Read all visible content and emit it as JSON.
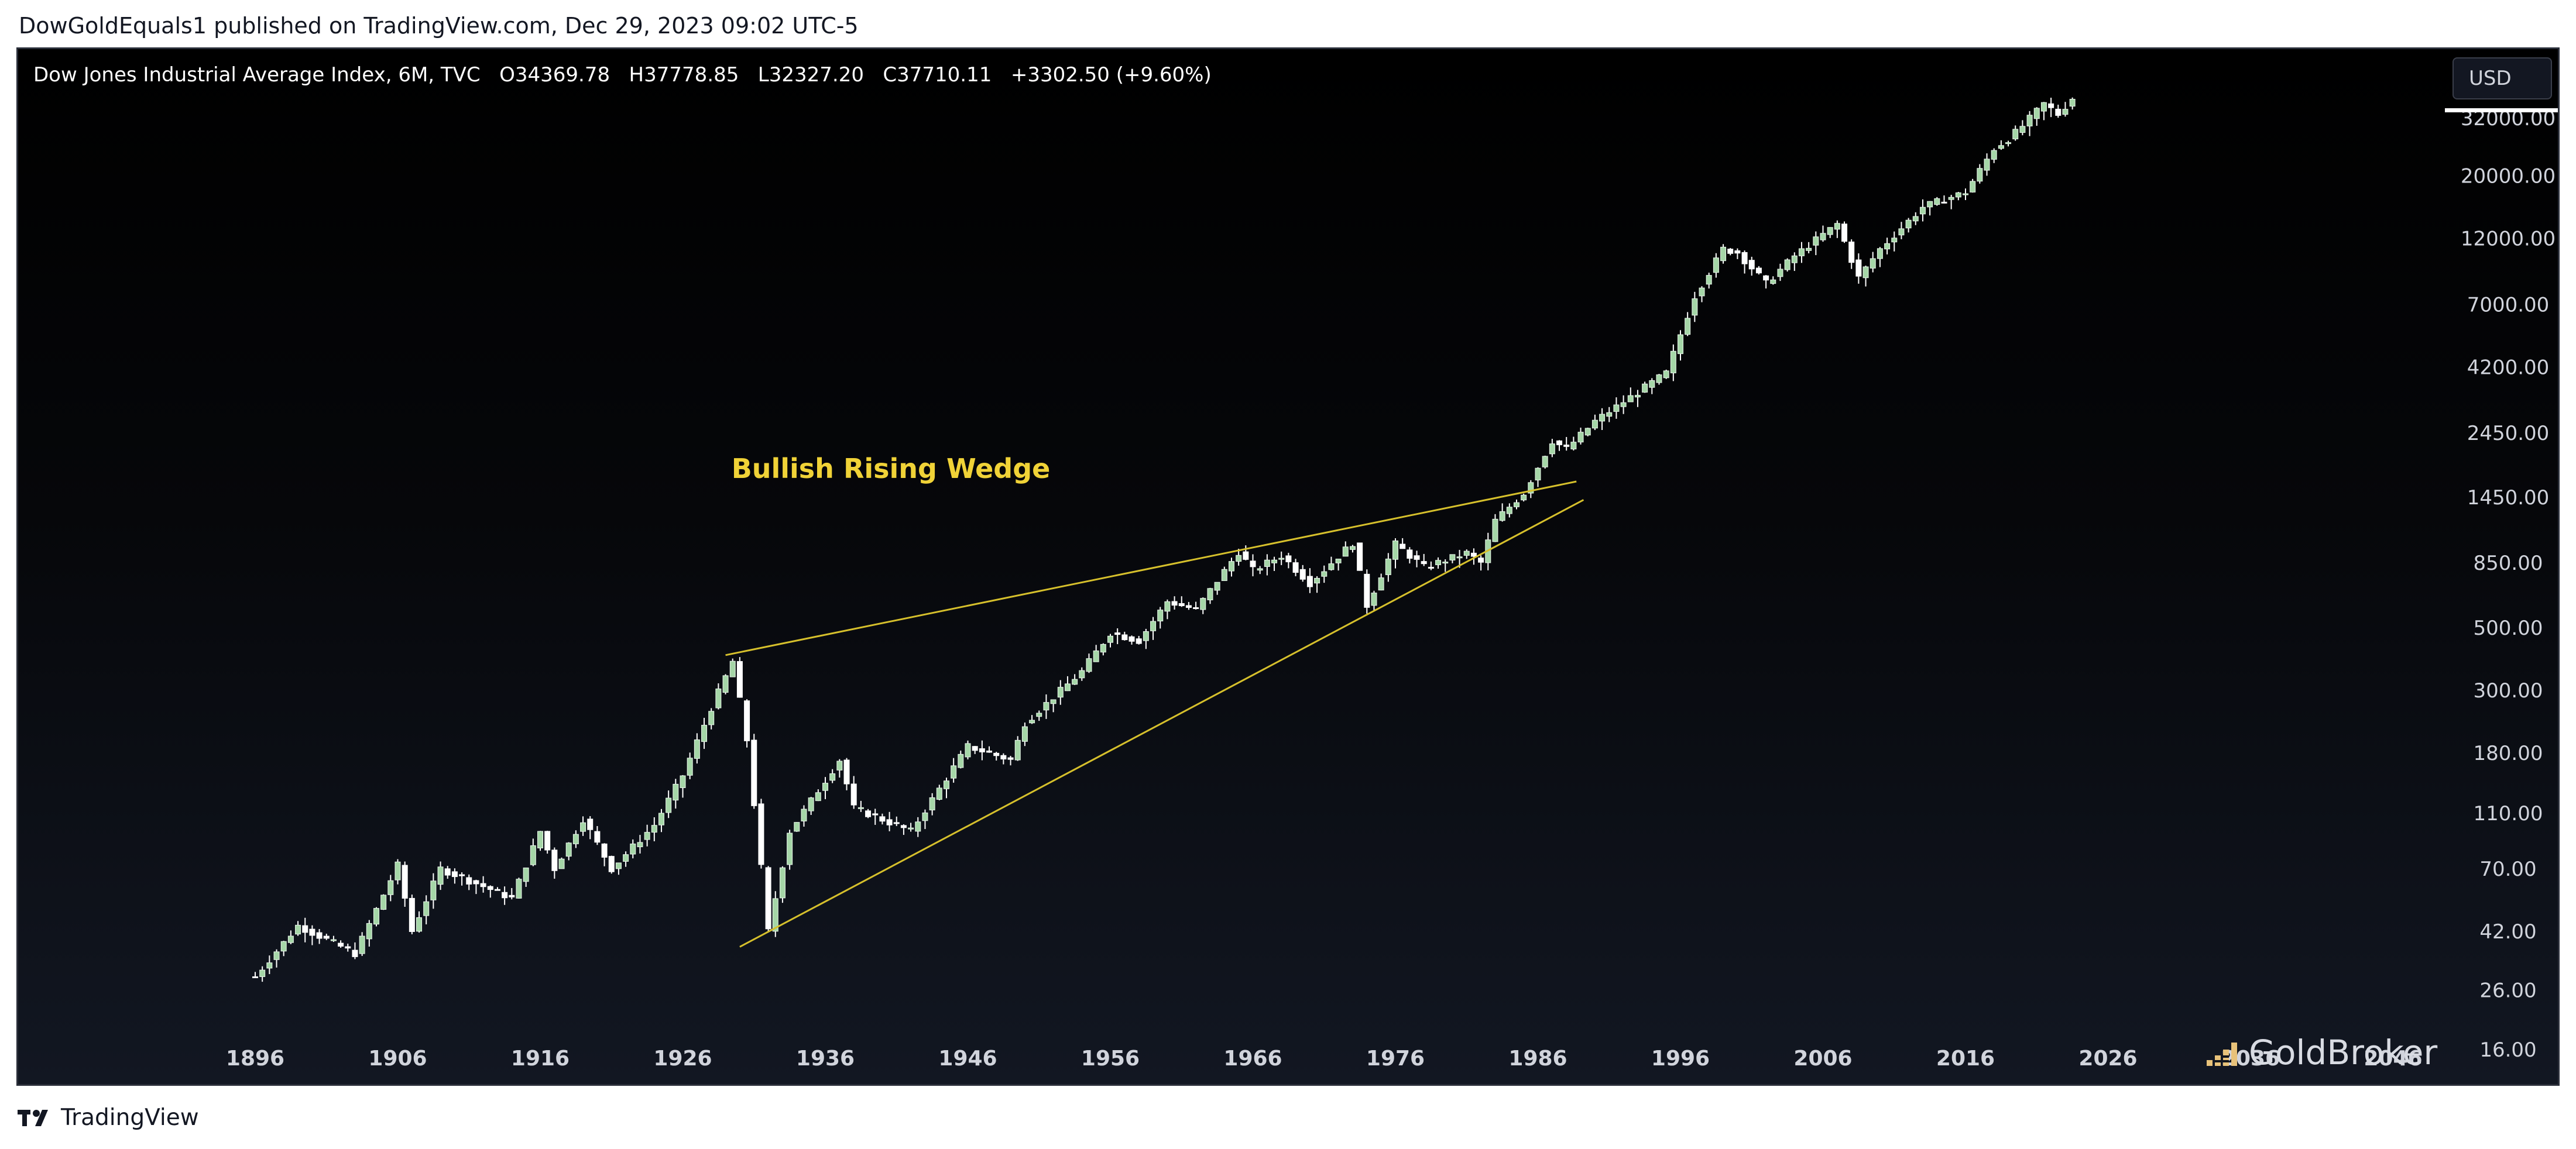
{
  "header": {
    "published_line": "DowGoldEquals1 published on TradingView.com, Dec 29, 2023 09:02 UTC-5"
  },
  "legend": {
    "symbol": "Dow Jones Industrial Average Index, 6M, TVC",
    "open": "O34369.78",
    "high": "H37778.85",
    "low": "L32327.20",
    "close": "C37710.11",
    "change": "+3302.50 (+9.60%)"
  },
  "currency_button": "USD",
  "watermark": "GoldBroker",
  "footer_brand": "TradingView",
  "colors": {
    "up_candle": "#a5d6a7",
    "down_candle": "#ffffff",
    "wedge": "#d6c02c",
    "annotation": "#f0d237",
    "axis_text": "#d1d4dc",
    "gold": "#e8c27a"
  },
  "chart_data": {
    "type": "candlestick",
    "title": "Dow Jones Industrial Average Index, 6M, TVC",
    "scale": "log",
    "grid": false,
    "ylim": [
      16,
      50000
    ],
    "xlim": [
      1891.5,
      2051
    ],
    "x_ticks": [
      "1896",
      "1906",
      "1916",
      "1926",
      "1936",
      "1946",
      "1956",
      "1966",
      "1976",
      "1986",
      "1996",
      "2006",
      "2016",
      "2026",
      "2036",
      "2046"
    ],
    "y_ticks": [
      {
        "value": 32000,
        "label": "32000.00"
      },
      {
        "value": 20000,
        "label": "20000.00"
      },
      {
        "value": 12000,
        "label": "12000.00"
      },
      {
        "value": 7000,
        "label": "7000.00"
      },
      {
        "value": 4200,
        "label": "4200.00"
      },
      {
        "value": 2450,
        "label": "2450.00"
      },
      {
        "value": 1450,
        "label": "1450.00"
      },
      {
        "value": 850,
        "label": "850.00"
      },
      {
        "value": 500,
        "label": "500.00"
      },
      {
        "value": 300,
        "label": "300.00"
      },
      {
        "value": 180,
        "label": "180.00"
      },
      {
        "value": 110,
        "label": "110.00"
      },
      {
        "value": 70,
        "label": "70.00"
      },
      {
        "value": 42,
        "label": "42.00"
      },
      {
        "value": 26,
        "label": "26.00"
      },
      {
        "value": 16,
        "label": "16.00"
      }
    ],
    "close_path": [
      [
        1896,
        29
      ],
      [
        1899,
        44
      ],
      [
        1903,
        35
      ],
      [
        1906,
        72
      ],
      [
        1907,
        42
      ],
      [
        1909,
        70
      ],
      [
        1914,
        55
      ],
      [
        1916,
        95
      ],
      [
        1917,
        70
      ],
      [
        1919,
        105
      ],
      [
        1921,
        70
      ],
      [
        1924,
        100
      ],
      [
        1926,
        150
      ],
      [
        1928,
        260
      ],
      [
        1929.5,
        380
      ],
      [
        1930.5,
        200
      ],
      [
        1932,
        42
      ],
      [
        1933.5,
        95
      ],
      [
        1937,
        170
      ],
      [
        1938,
        115
      ],
      [
        1942,
        95
      ],
      [
        1946,
        190
      ],
      [
        1949,
        170
      ],
      [
        1950,
        230
      ],
      [
        1954,
        350
      ],
      [
        1956,
        480
      ],
      [
        1958,
        450
      ],
      [
        1960,
        620
      ],
      [
        1962,
        580
      ],
      [
        1965,
        930
      ],
      [
        1966,
        800
      ],
      [
        1968,
        900
      ],
      [
        1970,
        720
      ],
      [
        1973,
        1000
      ],
      [
        1974,
        600
      ],
      [
        1976,
        990
      ],
      [
        1978,
        820
      ],
      [
        1981,
        920
      ],
      [
        1982,
        850
      ],
      [
        1983,
        1200
      ],
      [
        1985,
        1500
      ],
      [
        1987,
        2300
      ],
      [
        1988,
        2150
      ],
      [
        1990,
        2700
      ],
      [
        1995,
        4000
      ],
      [
        1997,
        7500
      ],
      [
        1999,
        11000
      ],
      [
        2000,
        10700
      ],
      [
        2002,
        8300
      ],
      [
        2004,
        10400
      ],
      [
        2007,
        13500
      ],
      [
        2008.5,
        8700
      ],
      [
        2010,
        11000
      ],
      [
        2013,
        15500
      ],
      [
        2016,
        17500
      ],
      [
        2018,
        25000
      ],
      [
        2019,
        27000
      ],
      [
        2020,
        30000
      ],
      [
        2021.5,
        36000
      ],
      [
        2022.5,
        33000
      ],
      [
        2023.5,
        37710.11
      ]
    ],
    "annotations": [
      {
        "type": "text",
        "text": "Bullish Rising Wedge",
        "x": 1940.6,
        "y": 1700
      },
      {
        "type": "trendline",
        "from": [
          1929,
          400
        ],
        "to": [
          1988.7,
          1650
        ]
      },
      {
        "type": "trendline",
        "from": [
          1930,
          37
        ],
        "to": [
          1989.2,
          1420
        ]
      }
    ]
  }
}
